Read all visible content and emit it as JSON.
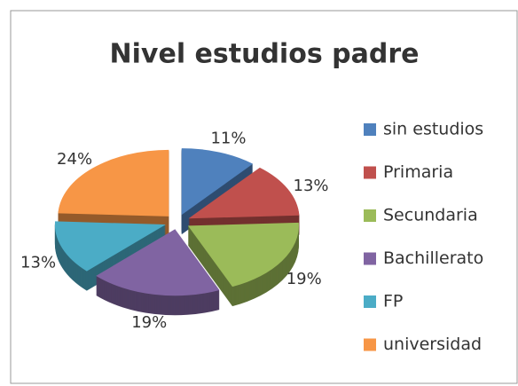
{
  "chart_data": {
    "type": "pie",
    "title": "Nivel estudios padre",
    "categories": [
      "sin estudios",
      "Primaria",
      "Secundaria",
      "Bachillerato",
      "FP",
      "universidad"
    ],
    "values": [
      11,
      13,
      19,
      19,
      13,
      24
    ],
    "value_labels": [
      "11%",
      "13%",
      "19%",
      "19%",
      "13%",
      "24%"
    ],
    "colors": [
      "#4f81bd",
      "#c0504d",
      "#9bbb59",
      "#8064a2",
      "#4bacc6",
      "#f79646"
    ],
    "legend": "right"
  }
}
